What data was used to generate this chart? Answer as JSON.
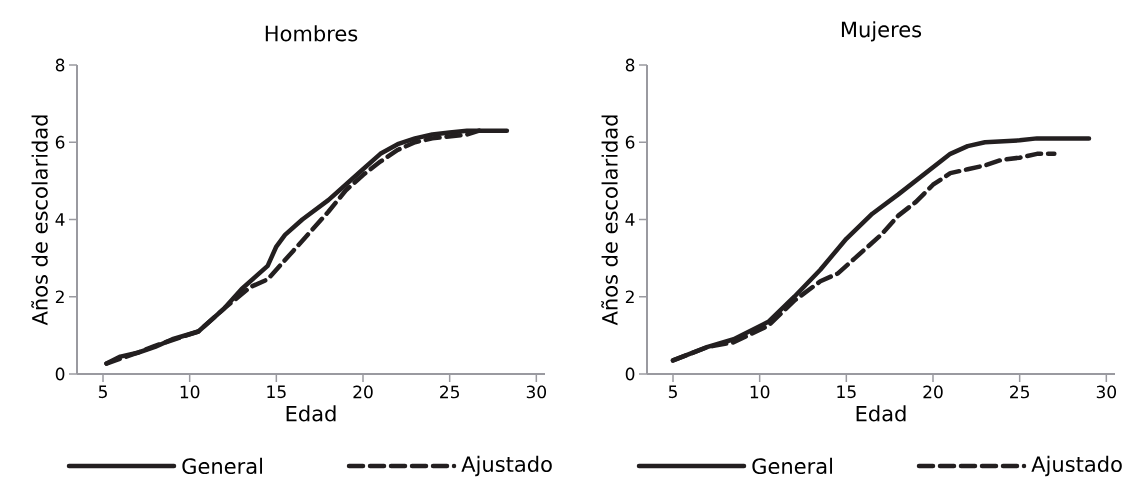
{
  "chart_data": [
    {
      "type": "line",
      "title": "Hombres",
      "xlabel": "Edad",
      "ylabel": "Años de escolaridad",
      "xlim": [
        3.5,
        30.5
      ],
      "ylim": [
        0,
        8
      ],
      "xticks": [
        5,
        10,
        15,
        20,
        25,
        30
      ],
      "yticks": [
        0,
        2,
        4,
        6,
        8
      ],
      "legend": "bottom",
      "series": [
        {
          "name": "General",
          "color": "#231f20",
          "line_style": "solid",
          "x": [
            5.2,
            6,
            7,
            8,
            9,
            10.5,
            12,
            13,
            14.5,
            15,
            15.5,
            16.5,
            18,
            19,
            20,
            21,
            22,
            23,
            24,
            25,
            26,
            28.3
          ],
          "values": [
            0.27,
            0.45,
            0.55,
            0.7,
            0.9,
            1.1,
            1.7,
            2.2,
            2.8,
            3.3,
            3.6,
            4.0,
            4.5,
            4.9,
            5.3,
            5.7,
            5.95,
            6.1,
            6.2,
            6.25,
            6.3,
            6.3
          ]
        },
        {
          "name": "Ajustado",
          "color": "#231f20",
          "line_style": "dashed",
          "x": [
            5.2,
            7,
            8,
            10.5,
            12,
            13.5,
            14.5,
            15,
            16,
            17,
            18,
            19,
            20,
            21,
            22,
            23,
            24,
            25,
            26,
            26.7
          ],
          "values": [
            0.27,
            0.55,
            0.73,
            1.1,
            1.7,
            2.25,
            2.45,
            2.7,
            3.2,
            3.7,
            4.2,
            4.75,
            5.15,
            5.5,
            5.8,
            6.0,
            6.1,
            6.15,
            6.2,
            6.3
          ]
        }
      ]
    },
    {
      "type": "line",
      "title": "Mujeres",
      "xlabel": "Edad",
      "ylabel": "Años de escolaridad",
      "xlim": [
        3.5,
        30.5
      ],
      "ylim": [
        0,
        8
      ],
      "xticks": [
        5,
        10,
        15,
        20,
        25,
        30
      ],
      "yticks": [
        0,
        2,
        4,
        6,
        8
      ],
      "legend": "bottom",
      "series": [
        {
          "name": "General",
          "color": "#231f20",
          "line_style": "solid",
          "x": [
            5,
            7,
            8.5,
            10.5,
            12,
            13.5,
            15,
            16.5,
            18,
            20,
            21,
            22,
            23,
            25,
            26,
            29
          ],
          "values": [
            0.35,
            0.7,
            0.9,
            1.35,
            2.0,
            2.7,
            3.5,
            4.15,
            4.65,
            5.35,
            5.7,
            5.9,
            6.0,
            6.05,
            6.1,
            6.1
          ]
        },
        {
          "name": "Ajustado",
          "color": "#231f20",
          "line_style": "dashed",
          "x": [
            5,
            7,
            8.5,
            10.5,
            12,
            13.5,
            14.5,
            15.5,
            17,
            18,
            19,
            20,
            21,
            22,
            23,
            24,
            25,
            26,
            27
          ],
          "values": [
            0.35,
            0.7,
            0.82,
            1.25,
            1.9,
            2.4,
            2.6,
            3.0,
            3.6,
            4.1,
            4.45,
            4.9,
            5.2,
            5.3,
            5.4,
            5.55,
            5.6,
            5.7,
            5.7
          ]
        }
      ]
    }
  ]
}
